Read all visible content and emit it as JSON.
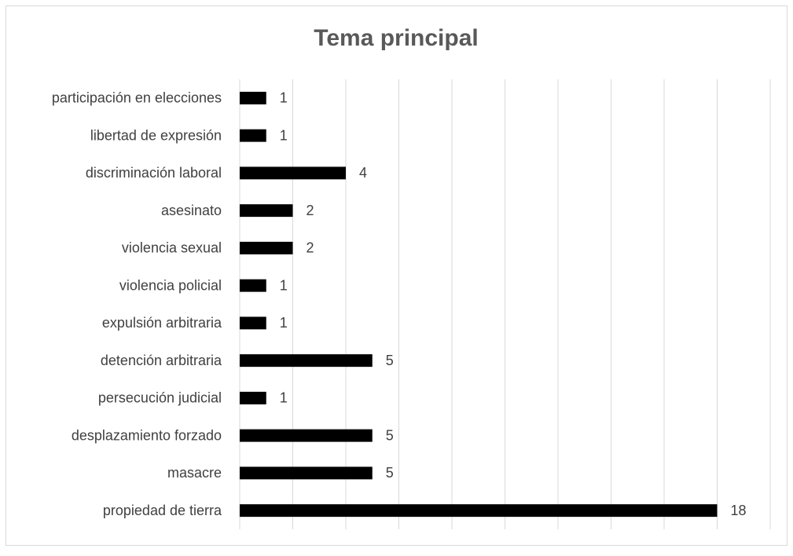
{
  "chart_data": {
    "type": "hbar",
    "title": "Tema principal",
    "categories": [
      "participación en elecciones",
      "libertad de expresión",
      "discriminación laboral",
      "asesinato",
      "violencia sexual",
      "violencia policial",
      "expulsión arbitraria",
      "detención arbitraria",
      "persecución judicial",
      "desplazamiento forzado",
      "masacre",
      "propiedad de tierra"
    ],
    "values": [
      1,
      1,
      4,
      2,
      2,
      1,
      1,
      5,
      1,
      5,
      5,
      18
    ],
    "color": "#000000",
    "xlim": [
      0,
      20
    ],
    "xticks": [
      0,
      2,
      4,
      6,
      8,
      10,
      12,
      14,
      16,
      18,
      20
    ],
    "grid": true
  }
}
